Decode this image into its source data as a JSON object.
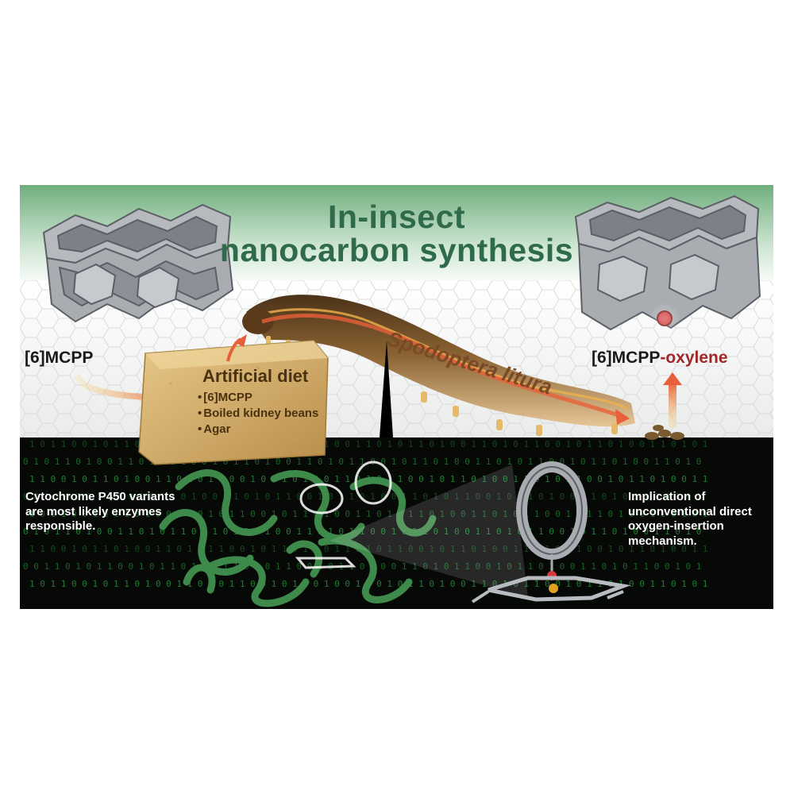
{
  "title": {
    "line1": "In-insect",
    "line2": "nanocarbon synthesis"
  },
  "labels": {
    "reactant": "[6]MCPP",
    "product_prefix": "[6]MCPP",
    "product_suffix": "-oxylene",
    "species": "Spodoptera litura"
  },
  "diet": {
    "title": "Artificial diet",
    "items": [
      "[6]MCPP",
      "Boiled kidney beans",
      "Agar"
    ]
  },
  "notes": {
    "left": "Cytochrome P450 variants are most likely enzymes responsible.",
    "right": "Implication of unconventional direct oxygen-insertion mechanism."
  },
  "binary_rows": [
    "1 0 1 1 0 0 1 0 1 1 0 1 0 0 1 1 0 1 0 1 1 0 0 1 0 1 1 0 1 0 0 1 1 0 1 0 1 1 0 1 0 0 1 1 0 1 0 1 1 0 0 1 0 1 1 0 1 0 0 1 1 0 1 0 1",
    "0 1 0 1 1 0 1 0 0 1 1 0 1 0 1 1 0 0 1 0 1 1 0 1 0 0 1 1 0 1 0 1 1 0 0 1 0 1 1 0 1 0 0 1 1 0 1 0 1 1 0 0 1 0 1 1 0 1 0 0 1 1 0 1 0",
    "1 1 0 0 1 0 1 1 0 1 0 0 1 1 0 1 0 1 1 0 0 1 0 1 1 0 1 0 0 1 1 0 1 0 1 1 0 0 1 0 1 1 0 1 0 0 1 1 0 1 0 1 1 0 0 1 0 1 1 0 1 0 0 1 1",
    "0 0 1 1 0 1 0 1 1 0 0 1 0 1 1 0 1 0 0 1 1 0 1 0 1 1 0 0 1 0 1 1 0 1 0 0 1 1 0 1 0 1 1 0 0 1 0 1 1 0 1 0 0 1 1 0 1 0 1 1 0 0 1 0 1"
  ],
  "colors": {
    "title": "#2f6a4a",
    "band_green": "#7fb98a",
    "dark_bg": "#070907",
    "binary": "#2fb84a",
    "protein": "#3e8a4a",
    "diet_block": "#d4ae6a",
    "larva": "#8a6232",
    "arrow": "#e8603a",
    "accent_oxylene": "#a0282a",
    "ring_grey": "#a9adb2"
  }
}
